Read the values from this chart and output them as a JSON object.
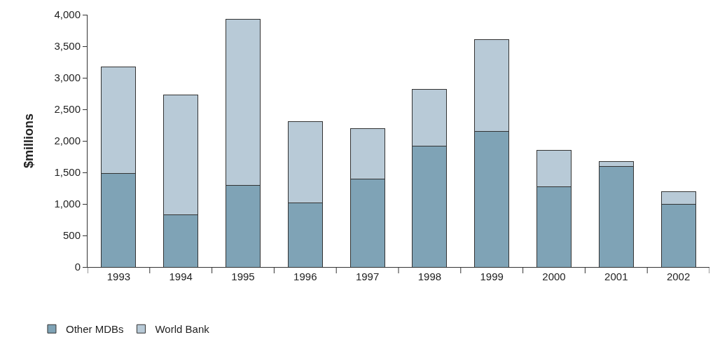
{
  "chart_data": {
    "type": "bar",
    "stacked": true,
    "ylabel": "$millions",
    "categories": [
      "1993",
      "1994",
      "1995",
      "1996",
      "1997",
      "1998",
      "1999",
      "2000",
      "2001",
      "2002"
    ],
    "series": [
      {
        "name": "Other MDBs",
        "color": "#7fa3b6",
        "values": [
          1480,
          830,
          1300,
          1020,
          1390,
          1920,
          2150,
          1270,
          1600,
          1000
        ]
      },
      {
        "name": "World Bank",
        "color": "#b8cad7",
        "values": [
          1690,
          1900,
          2630,
          1290,
          810,
          900,
          1460,
          580,
          70,
          200
        ]
      }
    ],
    "ylim": [
      0,
      4000
    ],
    "yticks": [
      {
        "value": 0,
        "label": "0"
      },
      {
        "value": 500,
        "label": "500"
      },
      {
        "value": 1000,
        "label": "1,000"
      },
      {
        "value": 1500,
        "label": "1,500"
      },
      {
        "value": 2000,
        "label": "2,000"
      },
      {
        "value": 2500,
        "label": "2,500"
      },
      {
        "value": 3000,
        "label": "3,000"
      },
      {
        "value": 3500,
        "label": "3,500"
      },
      {
        "value": 4000,
        "label": "4,000"
      }
    ],
    "legend": "bottom left"
  }
}
